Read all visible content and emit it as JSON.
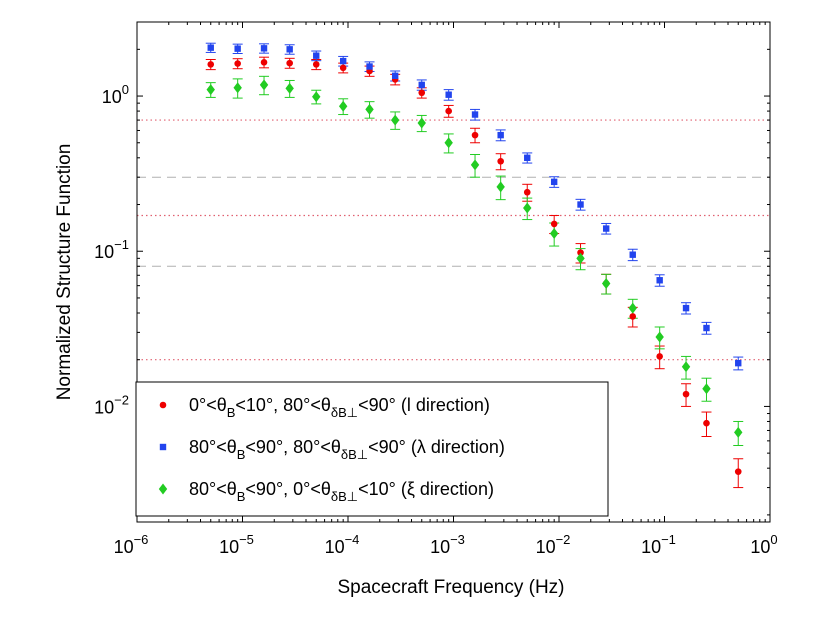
{
  "chart_data": {
    "type": "scatter",
    "xscale": "log",
    "yscale": "log",
    "xlim": [
      1e-06,
      1
    ],
    "ylim": [
      0.0018,
      3.0
    ],
    "xlabel": "Spacecraft Frequency (Hz)",
    "ylabel": "Normalized Structure Function",
    "x_ticks": [
      {
        "base": "10",
        "exp": "−6",
        "value": 1e-06
      },
      {
        "base": "10",
        "exp": "−5",
        "value": 1e-05
      },
      {
        "base": "10",
        "exp": "−4",
        "value": 0.0001
      },
      {
        "base": "10",
        "exp": "−3",
        "value": 0.001
      },
      {
        "base": "10",
        "exp": "−2",
        "value": 0.01
      },
      {
        "base": "10",
        "exp": "−1",
        "value": 0.1
      },
      {
        "base": "10",
        "exp": "0",
        "value": 1
      }
    ],
    "y_ticks": [
      {
        "base": "10",
        "exp": "0",
        "value": 1
      },
      {
        "base": "10",
        "exp": "−1",
        "value": 0.1
      },
      {
        "base": "10",
        "exp": "−2",
        "value": 0.01
      }
    ],
    "reference_lines": [
      {
        "y": 0.7,
        "style": "dotted",
        "color": "#e06070"
      },
      {
        "y": 0.17,
        "style": "dotted",
        "color": "#e06070"
      },
      {
        "y": 0.02,
        "style": "dotted",
        "color": "#e06070"
      },
      {
        "y": 0.3,
        "style": "dashed",
        "color": "#b0b0b0"
      },
      {
        "y": 0.08,
        "style": "dashed",
        "color": "#b0b0b0"
      }
    ],
    "x": [
      5e-06,
      9e-06,
      1.6e-05,
      2.8e-05,
      5e-05,
      9e-05,
      0.00016,
      0.00028,
      0.0005,
      0.0009,
      0.0016,
      0.0028,
      0.005,
      0.009,
      0.016,
      0.028,
      0.05,
      0.09,
      0.16,
      0.25,
      0.5
    ],
    "series": [
      {
        "legend_prefix": "0°<θ",
        "legend_sub1": "B",
        "legend_mid": "<10°, 80°<θ",
        "legend_sub2": "δB⊥",
        "legend_suffix": "<90° (l direction)",
        "color": "#ee0000",
        "marker": "circle",
        "values": [
          1.6,
          1.62,
          1.65,
          1.63,
          1.6,
          1.52,
          1.45,
          1.28,
          1.05,
          0.8,
          0.56,
          0.38,
          0.24,
          0.15,
          0.098,
          0.062,
          0.038,
          0.021,
          0.012,
          0.0078,
          0.0038
        ],
        "errors": [
          0.12,
          0.12,
          0.13,
          0.12,
          0.12,
          0.11,
          0.11,
          0.1,
          0.08,
          0.07,
          0.06,
          0.045,
          0.03,
          0.02,
          0.014,
          0.009,
          0.0055,
          0.0035,
          0.002,
          0.0014,
          0.0008
        ]
      },
      {
        "legend_prefix": "80°<θ",
        "legend_sub1": "B",
        "legend_mid": "<90°, 80°<θ",
        "legend_sub2": "δB⊥",
        "legend_suffix": "<90° (λ direction)",
        "color": "#2244ee",
        "marker": "square",
        "values": [
          2.05,
          2.02,
          2.03,
          2.0,
          1.82,
          1.68,
          1.55,
          1.35,
          1.18,
          1.02,
          0.76,
          0.56,
          0.4,
          0.28,
          0.2,
          0.14,
          0.095,
          0.065,
          0.043,
          0.032,
          0.019
        ],
        "errors": [
          0.14,
          0.14,
          0.14,
          0.14,
          0.13,
          0.12,
          0.11,
          0.1,
          0.09,
          0.08,
          0.06,
          0.045,
          0.03,
          0.022,
          0.016,
          0.011,
          0.008,
          0.0055,
          0.0036,
          0.0028,
          0.0018
        ]
      },
      {
        "legend_prefix": "80°<θ",
        "legend_sub1": "B",
        "legend_mid": "<90°, 0°<θ",
        "legend_sub2": "δB⊥",
        "legend_suffix": "<10° (ξ direction)",
        "color": "#22cc22",
        "marker": "diamond",
        "values": [
          1.1,
          1.13,
          1.18,
          1.12,
          0.99,
          0.86,
          0.82,
          0.7,
          0.67,
          0.5,
          0.36,
          0.26,
          0.19,
          0.13,
          0.09,
          0.062,
          0.043,
          0.028,
          0.018,
          0.013,
          0.0068
        ],
        "errors": [
          0.12,
          0.16,
          0.16,
          0.14,
          0.1,
          0.1,
          0.1,
          0.09,
          0.08,
          0.07,
          0.06,
          0.045,
          0.03,
          0.022,
          0.014,
          0.009,
          0.006,
          0.0045,
          0.003,
          0.0022,
          0.0012
        ]
      }
    ]
  }
}
